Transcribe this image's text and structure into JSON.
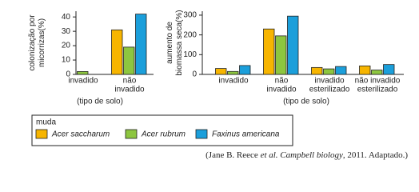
{
  "chart_data": [
    {
      "type": "bar",
      "ylabel": [
        "colonização por",
        "micorrizas(%)"
      ],
      "xlabel": "(tipo de solo)",
      "categories": [
        [
          "invadido"
        ],
        [
          "não",
          "invadido"
        ]
      ],
      "series": [
        {
          "name": "Acer saccharum",
          "color": "#f7b500",
          "values": [
            0,
            31
          ]
        },
        {
          "name": "Acer rubrum",
          "color": "#8dc63f",
          "values": [
            2,
            19
          ]
        },
        {
          "name": "Faxinus americana",
          "color": "#1b9fdb",
          "values": [
            0,
            42
          ]
        }
      ],
      "ylim": [
        0,
        44
      ],
      "yticks": [
        0,
        10,
        20,
        30,
        40
      ]
    },
    {
      "type": "bar",
      "ylabel": [
        "aumento de",
        "biomassa seca(%)"
      ],
      "xlabel": "(tipo de solo)",
      "categories": [
        [
          "invadido"
        ],
        [
          "não",
          "invadido"
        ],
        [
          "invadido",
          "esterilizado"
        ],
        [
          "não invadido",
          "esterilizado"
        ]
      ],
      "series": [
        {
          "name": "Acer saccharum",
          "color": "#f7b500",
          "values": [
            30,
            230,
            35,
            43
          ]
        },
        {
          "name": "Acer rubrum",
          "color": "#8dc63f",
          "values": [
            15,
            195,
            28,
            22
          ]
        },
        {
          "name": "Faxinus americana",
          "color": "#1b9fdb",
          "values": [
            45,
            295,
            40,
            50
          ]
        }
      ],
      "ylim": [
        0,
        320
      ],
      "yticks": [
        0,
        100,
        200,
        300
      ]
    }
  ],
  "legend": {
    "title": "muda"
  },
  "citation": [
    "(Jane B. Reece ",
    "et al. Campbell biology",
    ", 2011. Adaptado.)"
  ]
}
